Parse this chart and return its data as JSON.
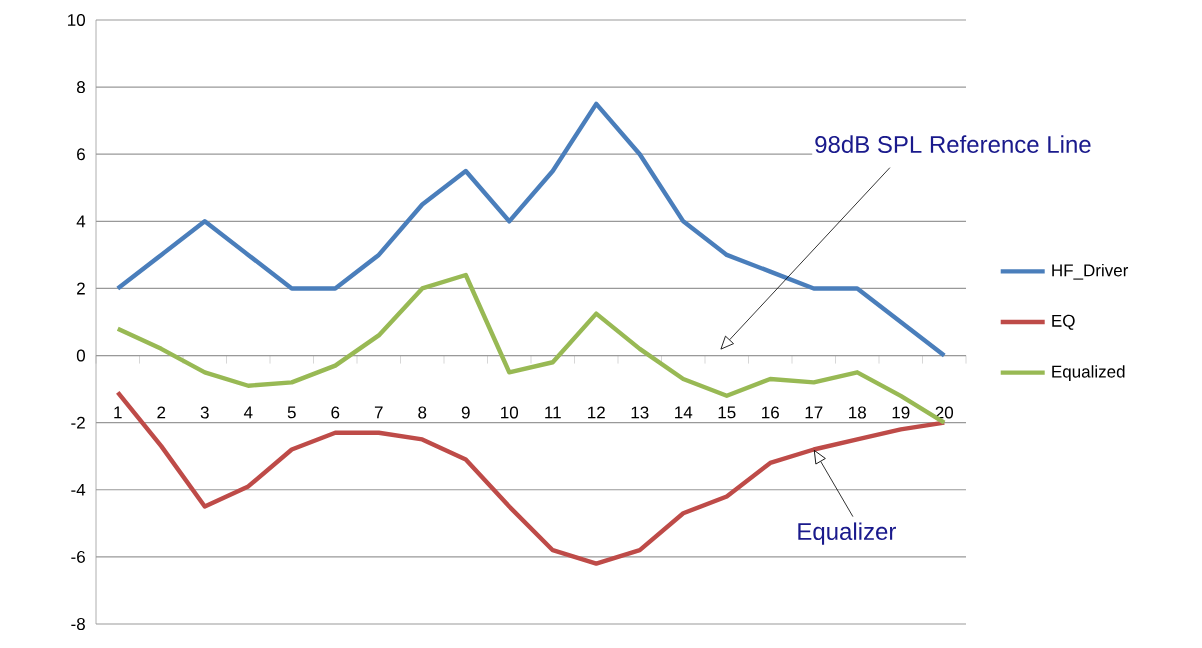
{
  "chart_data": {
    "type": "line",
    "categories": [
      "1",
      "2",
      "3",
      "4",
      "5",
      "6",
      "7",
      "8",
      "9",
      "10",
      "11",
      "12",
      "13",
      "14",
      "15",
      "16",
      "17",
      "18",
      "19",
      "20"
    ],
    "series": [
      {
        "name": "HF_Driver",
        "color": "#4a7ebb",
        "values": [
          2,
          3,
          4,
          3,
          2,
          2,
          3,
          4.5,
          5.5,
          4,
          5.5,
          7.5,
          6,
          4,
          3,
          2.5,
          2,
          2,
          1,
          0
        ]
      },
      {
        "name": "EQ",
        "color": "#be4b48",
        "values": [
          -1.1,
          -2.7,
          -4.5,
          -3.9,
          -2.8,
          -2.3,
          -2.3,
          -2.5,
          -3.1,
          -4.5,
          -5.8,
          -6.2,
          -5.8,
          -4.7,
          -4.2,
          -3.2,
          -2.8,
          -2.5,
          -2.2,
          -2
        ]
      },
      {
        "name": "Equalized",
        "color": "#98b954",
        "values": [
          0.8,
          0.2,
          -0.5,
          -0.9,
          -0.8,
          -0.3,
          0.6,
          2,
          2.4,
          -0.5,
          -0.2,
          1.25,
          0.2,
          -0.7,
          -1.2,
          -0.7,
          -0.8,
          -0.5,
          -1.2,
          -2
        ]
      }
    ],
    "ylim": [
      -8,
      10
    ],
    "yticks": [
      -8,
      -6,
      -4,
      -2,
      0,
      2,
      4,
      6,
      8,
      10
    ],
    "grid": "y",
    "legend": "right",
    "marker": "none",
    "line_style": "solid",
    "annotations": [
      "98dB SPL Reference Line",
      {
        "text": "Equalizer",
        "x": "17",
        "y": -2.8
      }
    ]
  }
}
